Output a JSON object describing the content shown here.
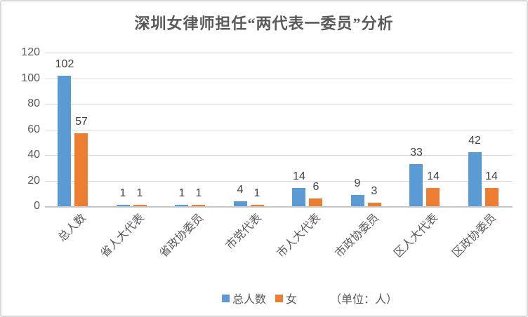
{
  "chart_data": {
    "type": "bar",
    "title": "深圳女律师担任“两代表一委员”分析",
    "categories": [
      "总人数",
      "省人大代表",
      "省政协委员",
      "市党代表",
      "市人大代表",
      "市政协委员",
      "区人大代表",
      "区政协委员"
    ],
    "series": [
      {
        "name": "总人数",
        "color": "#5B9BD5",
        "values": [
          102,
          1,
          1,
          4,
          14,
          9,
          33,
          42
        ]
      },
      {
        "name": "女",
        "color": "#ED7D31",
        "values": [
          57,
          1,
          1,
          1,
          6,
          3,
          14,
          14
        ]
      }
    ],
    "ylim": [
      0,
      120
    ],
    "yticks": [
      0,
      20,
      40,
      60,
      80,
      100,
      120
    ],
    "xlabel": "",
    "ylabel": "",
    "unit_label": "（单位：人）",
    "legend_position": "bottom",
    "grid": true,
    "colors": {
      "text": "#595959",
      "data_label": "#404040",
      "gridline": "#D9D9D9",
      "axis_line": "#C6C6C6",
      "border": "#D9D9D9",
      "background": "#FFFFFF"
    }
  }
}
